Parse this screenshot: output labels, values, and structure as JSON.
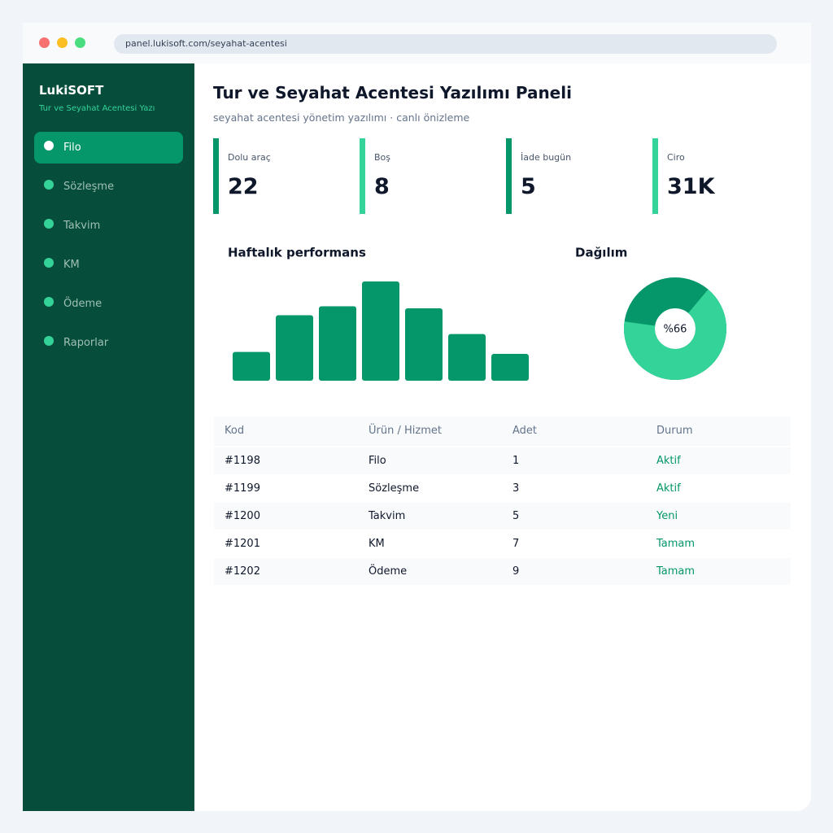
{
  "browser": {
    "url": "panel.lukisoft.com/seyahat-acentesi"
  },
  "sidebar": {
    "brand": "LukiSOFT",
    "tagline": "Tur ve Seyahat Acentesi Yazı",
    "items": [
      "Filo",
      "Sözleşme",
      "Takvim",
      "KM",
      "Ödeme",
      "Raporlar"
    ],
    "active": 0
  },
  "header": {
    "title": "Tur ve Seyahat Acentesi Yazılımı Paneli",
    "subtitle": "seyahat acentesi yönetim yazılımı · canlı önizleme"
  },
  "kpis": [
    {
      "label": "Dolu araç",
      "value": 22,
      "color": "#059669"
    },
    {
      "label": "Boş",
      "value": 8,
      "color": "#34d399"
    },
    {
      "label": "İade bugün",
      "value": 5,
      "color": "#059669"
    },
    {
      "label": "Ciro",
      "value": "31K",
      "color": "#34d399"
    }
  ],
  "chart_data": [
    {
      "type": "bar",
      "title": "Haftalık performans",
      "values": [
        29,
        66,
        75,
        100,
        73,
        47,
        27
      ],
      "color": "#059669"
    },
    {
      "type": "donut",
      "title": "Dağılım",
      "values": [
        66
      ],
      "value_labels": [
        "%66"
      ],
      "color": "#34d399",
      "track_color": "#059669"
    }
  ],
  "table": {
    "columns": [
      "Kod",
      "Ürün / Hizmet",
      "Adet",
      "Durum"
    ],
    "rows": [
      [
        "#1198",
        "Filo",
        1,
        "Aktif"
      ],
      [
        "#1199",
        "Sözleşme",
        3,
        "Aktif"
      ],
      [
        "#1200",
        "Takvim",
        5,
        "Yeni"
      ],
      [
        "#1201",
        "KM",
        7,
        "Tamam"
      ],
      [
        "#1202",
        "Ödeme",
        9,
        "Tamam"
      ]
    ]
  }
}
